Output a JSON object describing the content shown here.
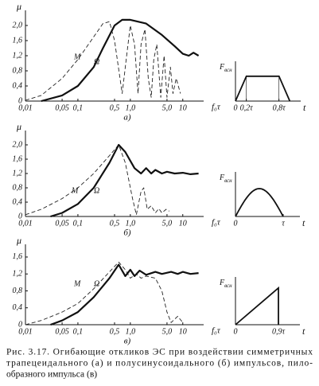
{
  "chart_data": [
    {
      "type": "line",
      "log_x": true,
      "xlabel": "f₀τ",
      "ylabel": "μ",
      "panel_label": "а)",
      "xlim": [
        0.01,
        25
      ],
      "ylim": [
        0,
        2.4
      ],
      "xticks": [
        {
          "value": 0.01,
          "label": "0,01"
        },
        {
          "value": 0.05,
          "label": "0,05"
        },
        {
          "value": 0.1,
          "label": "0,1"
        },
        {
          "value": 0.5,
          "label": "0,5"
        },
        {
          "value": 1,
          "label": "1,0"
        },
        {
          "value": 5,
          "label": "5,0"
        },
        10
      ],
      "yticks": [
        0,
        {
          "value": 0.4,
          "label": "0,4"
        },
        {
          "value": 0.8,
          "label": "0,8"
        },
        {
          "value": 1.2,
          "label": "1,2"
        },
        {
          "value": 1.6,
          "label": "1,6"
        },
        {
          "value": 2.0,
          "label": "2,0"
        }
      ],
      "series": [
        {
          "name": "M",
          "color": "#222",
          "dashed": true,
          "x": [
            0.01,
            0.02,
            0.05,
            0.1,
            0.2,
            0.3,
            0.4,
            0.5,
            0.7,
            0.85,
            1.0,
            1.2,
            1.4,
            1.6,
            1.9,
            2.2,
            2.5,
            2.8,
            3.2,
            3.8,
            4.4,
            5,
            5.8,
            6.5,
            7.5,
            9
          ],
          "values": [
            0.02,
            0.15,
            0.6,
            1.1,
            1.7,
            2.05,
            2.1,
            1.6,
            0.2,
            1.2,
            2.0,
            1.5,
            0.2,
            1.5,
            1.9,
            0.6,
            0.1,
            1.1,
            1.5,
            0.1,
            1.2,
            0.1,
            0.9,
            0.2,
            0.6,
            0.2
          ]
        },
        {
          "name": "Ω",
          "color": "#111",
          "dashed": false,
          "x": [
            0.02,
            0.05,
            0.1,
            0.2,
            0.3,
            0.5,
            0.7,
            1.0,
            2,
            4,
            7,
            10,
            13,
            16,
            20
          ],
          "values": [
            0,
            0.15,
            0.4,
            0.9,
            1.4,
            2.0,
            2.15,
            2.15,
            2.05,
            1.75,
            1.45,
            1.25,
            1.2,
            1.28,
            1.2
          ]
        }
      ],
      "inset": {
        "ylabel": "F",
        "ylabel_sub": "всн",
        "xlabel": "t",
        "shape": "polyline",
        "x": [
          0,
          0.2,
          0.8,
          1
        ],
        "y": [
          0,
          1,
          1,
          0
        ],
        "xlim": [
          0,
          1.2
        ],
        "ylim": [
          0,
          1.6
        ],
        "xticks": [
          0,
          {
            "value": 0.2,
            "label": "0,2τ"
          },
          {
            "value": 0.8,
            "label": "0,8τ"
          }
        ]
      }
    },
    {
      "type": "line",
      "log_x": true,
      "xlabel": "f₀τ",
      "ylabel": "μ",
      "panel_label": "б)",
      "xlim": [
        0.01,
        25
      ],
      "ylim": [
        0,
        2.4
      ],
      "xticks": [
        {
          "value": 0.01,
          "label": "0,01"
        },
        {
          "value": 0.05,
          "label": "0,05"
        },
        {
          "value": 0.1,
          "label": "0,1"
        },
        {
          "value": 0.5,
          "label": "0,5"
        },
        {
          "value": 1,
          "label": "1,0"
        },
        {
          "value": 5,
          "label": "5,0"
        },
        10
      ],
      "yticks": [
        0,
        {
          "value": 0.4,
          "label": "0,4"
        },
        {
          "value": 0.8,
          "label": "0,8"
        },
        {
          "value": 1.2,
          "label": "1,2"
        },
        {
          "value": 1.6,
          "label": "1,6"
        },
        {
          "value": 2.0,
          "label": "2,0"
        }
      ],
      "series": [
        {
          "name": "M",
          "color": "#222",
          "dashed": true,
          "x": [
            0.01,
            0.02,
            0.05,
            0.1,
            0.2,
            0.4,
            0.6,
            0.8,
            1.1,
            1.3,
            1.6,
            1.8,
            2.1,
            2.5,
            3,
            3.5,
            4,
            4.8,
            5.5
          ],
          "values": [
            0.05,
            0.2,
            0.5,
            0.8,
            1.2,
            1.7,
            2.0,
            1.5,
            0.5,
            0.05,
            0.7,
            0.8,
            0.2,
            0.3,
            0.1,
            0.22,
            0.1,
            0.2,
            0.15
          ]
        },
        {
          "name": "Ω",
          "color": "#111",
          "dashed": false,
          "x": [
            0.03,
            0.05,
            0.1,
            0.2,
            0.4,
            0.6,
            0.8,
            1.2,
            1.6,
            2,
            2.5,
            3,
            4,
            5,
            7,
            10,
            14,
            20
          ],
          "values": [
            0,
            0.1,
            0.35,
            0.8,
            1.5,
            2.0,
            1.8,
            1.35,
            1.2,
            1.35,
            1.2,
            1.3,
            1.2,
            1.25,
            1.2,
            1.22,
            1.18,
            1.2
          ]
        }
      ],
      "inset": {
        "ylabel": "F",
        "ylabel_sub": "всн",
        "xlabel": "t",
        "shape": "half-sine",
        "x": [
          0,
          1
        ],
        "y": [
          0,
          1
        ],
        "xlim": [
          0,
          1.35
        ],
        "ylim": [
          0,
          1.6
        ],
        "xticks": [
          0,
          {
            "value": 1,
            "label": "τ"
          }
        ]
      }
    },
    {
      "type": "line",
      "log_x": true,
      "xlabel": "f₀τ",
      "ylabel": "μ",
      "panel_label": "в)",
      "xlim": [
        0.01,
        25
      ],
      "ylim": [
        0,
        1.9
      ],
      "xticks": [
        {
          "value": 0.01,
          "label": "0,01"
        },
        {
          "value": 0.05,
          "label": "0,05"
        },
        {
          "value": 0.1,
          "label": "0,1"
        },
        {
          "value": 0.5,
          "label": "0,5"
        },
        {
          "value": 1,
          "label": "1,0"
        },
        {
          "value": 5,
          "label": "5,0"
        },
        10
      ],
      "yticks": [
        0,
        {
          "value": 0.4,
          "label": "0,4"
        },
        {
          "value": 0.8,
          "label": "0,8"
        },
        {
          "value": 1.2,
          "label": "1,2"
        },
        {
          "value": 1.6,
          "label": "1,6"
        }
      ],
      "series": [
        {
          "name": "M",
          "color": "#222",
          "dashed": true,
          "x": [
            0.01,
            0.02,
            0.05,
            0.1,
            0.2,
            0.4,
            0.6,
            0.8,
            1.0,
            1.3,
            1.6,
            2,
            3,
            4,
            5,
            6,
            8,
            10
          ],
          "values": [
            0,
            0.1,
            0.3,
            0.5,
            0.85,
            1.25,
            1.48,
            1.3,
            1.1,
            1.2,
            1.1,
            1.15,
            1.1,
            0.8,
            0.3,
            0.05,
            0.2,
            0.05
          ]
        },
        {
          "name": "Ω",
          "color": "#111",
          "dashed": false,
          "x": [
            0.03,
            0.05,
            0.1,
            0.2,
            0.4,
            0.6,
            0.8,
            1.0,
            1.2,
            1.5,
            2,
            3,
            4,
            6,
            8,
            10,
            14,
            20
          ],
          "values": [
            0,
            0.1,
            0.3,
            0.65,
            1.1,
            1.42,
            1.15,
            1.3,
            1.15,
            1.28,
            1.18,
            1.25,
            1.2,
            1.25,
            1.2,
            1.25,
            1.2,
            1.22
          ]
        }
      ],
      "inset": {
        "ylabel": "F",
        "ylabel_sub": "всн",
        "xlabel": "t",
        "shape": "polyline",
        "x": [
          0,
          0.9,
          0.9
        ],
        "y": [
          0,
          1,
          0
        ],
        "xlim": [
          0,
          1.35
        ],
        "ylim": [
          0,
          1.3
        ],
        "xticks": [
          0,
          {
            "value": 0.9,
            "label": "0,9τ"
          }
        ]
      }
    }
  ],
  "caption": [
    "Рис. 3.17. Огибающие откликов ЭС при воздействии симметричных",
    "трапецеидального (а) и полусинусоидального (б) импульсов, пило-",
    "образного импульса (в)"
  ]
}
